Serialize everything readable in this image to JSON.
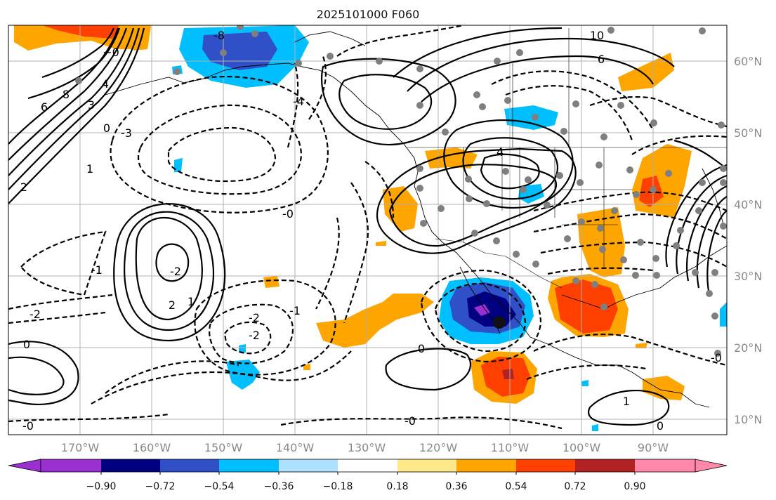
{
  "title": "2025101000 F060",
  "axes": {
    "lon_ticks": [
      "170°W",
      "160°W",
      "150°W",
      "140°W",
      "130°W",
      "120°W",
      "110°W",
      "100°W",
      "90°W"
    ],
    "lat_ticks": [
      "60°N",
      "50°N",
      "40°N",
      "30°N",
      "20°N",
      "10°N"
    ]
  },
  "colorbar": {
    "colors": [
      "#9b30d0",
      "#000080",
      "#3050c8",
      "#00bfff",
      "#aee0ff",
      "#ffffff",
      "#ffe88a",
      "#ffa500",
      "#ff4000",
      "#b22222",
      "#ff88aa"
    ],
    "ticks": [
      "−0.90",
      "−0.72",
      "−0.54",
      "−0.36",
      "−0.18",
      "0.18",
      "0.36",
      "0.54",
      "0.72",
      "0.90"
    ]
  },
  "contour_labels": [
    "8",
    "6",
    "4",
    "3",
    "2",
    "1",
    "0",
    "−0",
    "-0",
    "10",
    "-8",
    "6",
    "-4",
    "-3",
    "-2",
    "-1",
    "2",
    "4",
    "1",
    "-2",
    "-1",
    "-2",
    "0",
    "-0",
    "-0",
    "-2",
    "0",
    "1",
    "-0",
    "0"
  ],
  "colors": {
    "positive": "#ffa500",
    "negative": "#00bfff",
    "land_lines": "#000000",
    "dots": "#7f7f7f"
  }
}
